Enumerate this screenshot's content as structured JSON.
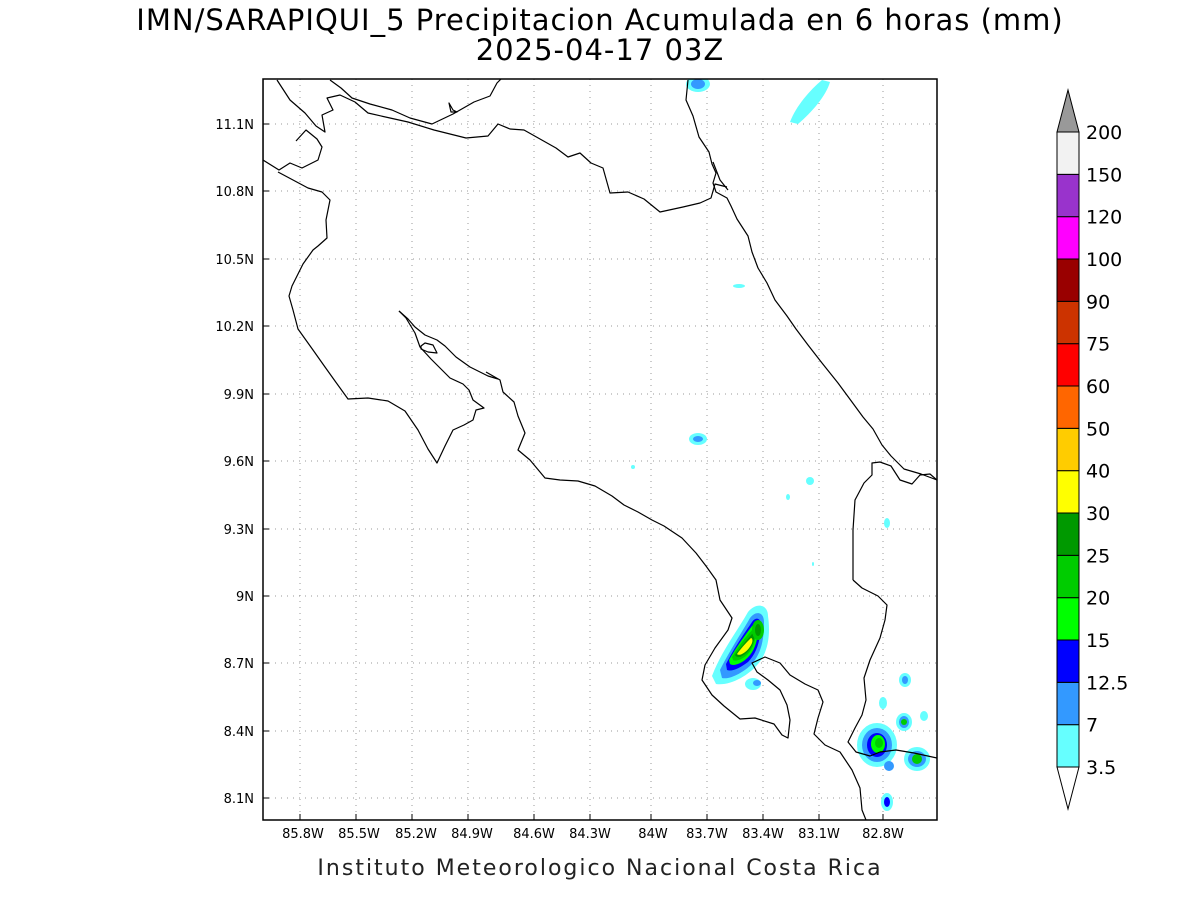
{
  "title": {
    "line1": "IMN/SARAPIQUI_5 Precipitacion Acumulada en 6 horas (mm)",
    "line2": "2025-04-17 03Z"
  },
  "footer": "Instituto Meteorologico Nacional Costa Rica",
  "axes": {
    "x_ticks": [
      "85.8W",
      "85.5W",
      "85.2W",
      "84.9W",
      "84.6W",
      "84.3W",
      "84W",
      "83.7W",
      "83.4W",
      "83.1W",
      "82.8W"
    ],
    "y_ticks": [
      "11.1N",
      "10.8N",
      "10.5N",
      "10.2N",
      "9.9N",
      "9.6N",
      "9.3N",
      "9N",
      "8.7N",
      "8.4N",
      "8.1N"
    ],
    "grid": "dotted"
  },
  "colorbar": {
    "orientation": "vertical",
    "placement": "right",
    "units": "mm",
    "levels": [
      {
        "label": "3.5",
        "color": "#66ffff"
      },
      {
        "label": "7",
        "color": "#3399ff"
      },
      {
        "label": "12.5",
        "color": "#0000ff"
      },
      {
        "label": "15",
        "color": "#00ff00"
      },
      {
        "label": "20",
        "color": "#00cc00"
      },
      {
        "label": "25",
        "color": "#009900"
      },
      {
        "label": "30",
        "color": "#ffff00"
      },
      {
        "label": "40",
        "color": "#ffcc00"
      },
      {
        "label": "50",
        "color": "#ff6600"
      },
      {
        "label": "60",
        "color": "#ff0000"
      },
      {
        "label": "75",
        "color": "#cc3300"
      },
      {
        "label": "90",
        "color": "#990000"
      },
      {
        "label": "100",
        "color": "#ff00ff"
      },
      {
        "label": "120",
        "color": "#9933cc"
      },
      {
        "label": "150",
        "color": "#f2f2f2"
      },
      {
        "label": "200",
        "color": "#999999"
      }
    ]
  },
  "precip_areas": [
    {
      "name": "osa-peninsula-max",
      "lon": -83.53,
      "lat": 8.78,
      "level": "30"
    },
    {
      "name": "golfito-area",
      "lon": -82.82,
      "lat": 8.37,
      "level": "20"
    },
    {
      "name": "panama-border-east",
      "lon": -82.64,
      "lat": 8.29,
      "level": "15"
    },
    {
      "name": "caribbean-coast-north",
      "lon": -83.3,
      "lat": 11.22,
      "level": "3.5"
    },
    {
      "name": "north-edge",
      "lon": -83.67,
      "lat": 11.28,
      "level": "7"
    },
    {
      "name": "central-valley-east",
      "lon": -83.69,
      "lat": 9.7,
      "level": "7"
    }
  ]
}
